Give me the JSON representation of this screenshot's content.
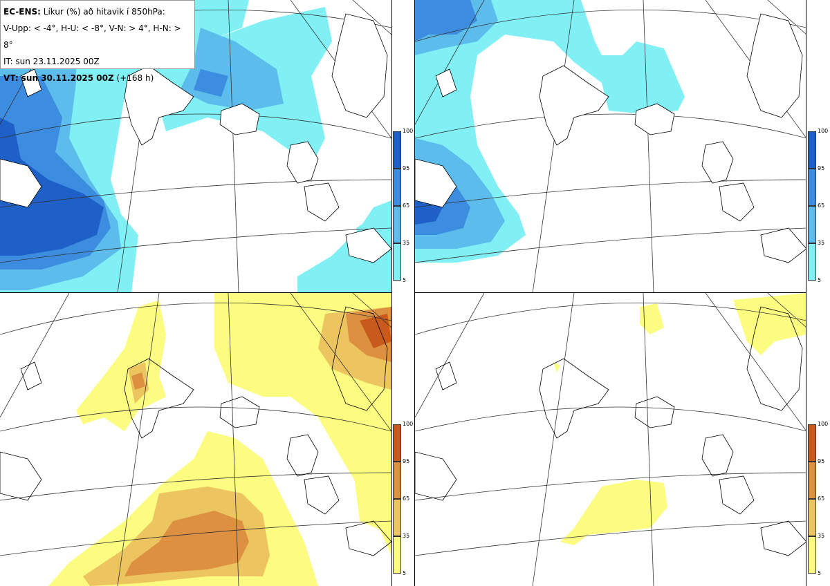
{
  "header": {
    "model": "EC-ENS:",
    "title_rest": "Líkur (%) að hitavik í 850hPa:",
    "thresholds": "V-Upp: < -4°, H-U: < -8°, V-N: > 4°, H-N: > 8°",
    "init_time": "IT: sun 23.11.2025 00Z",
    "valid_time": "VT: sun 30.11.2025 00Z",
    "lead": "(+168 h)"
  },
  "panels": [
    {
      "id": "V-Upp",
      "description_key": "cold_weak",
      "palette": "blue"
    },
    {
      "id": "H-U",
      "description_key": "cold_strong",
      "palette": "blue"
    },
    {
      "id": "V-N",
      "description_key": "warm_weak",
      "palette": "orange"
    },
    {
      "id": "H-N",
      "description_key": "warm_strong",
      "palette": "orange"
    }
  ],
  "colorbars": {
    "ticks": [
      "100",
      "95",
      "65",
      "35",
      "5"
    ],
    "blue_colors": [
      "#1e60c8",
      "#3c8ce0",
      "#5cbcec",
      "#80f0f4"
    ],
    "orange_colors": [
      "#c85a1e",
      "#dc9040",
      "#ecc460",
      "#fcfc80"
    ]
  },
  "colors": {
    "blue_low": "#80f0f4",
    "blue_mid": "#5cbcec",
    "blue_high": "#3c8ce0",
    "blue_max": "#1e60c8",
    "yel_low": "#fcfc80",
    "yel_mid": "#ecc460",
    "yel_high": "#dc9040",
    "yel_max": "#c85a1e"
  }
}
